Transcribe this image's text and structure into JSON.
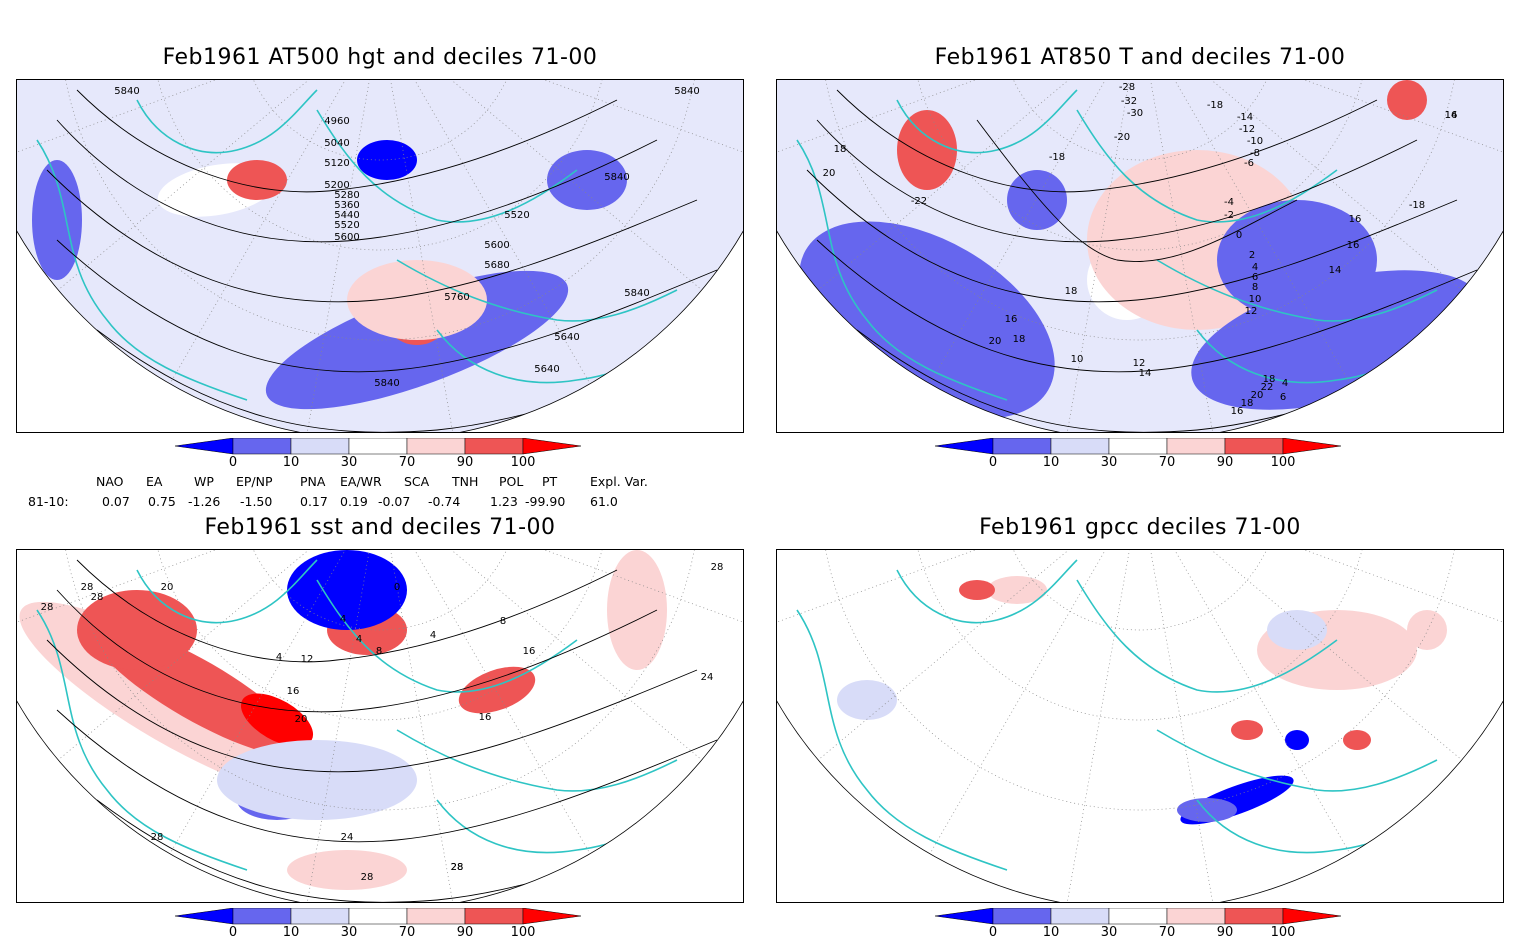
{
  "panels": [
    {
      "id": "p1",
      "title": "Feb1961 AT500 hgt and deciles 71-00",
      "contour_labels": [
        "5840",
        "4960",
        "5040",
        "5120",
        "5200",
        "5280",
        "5360",
        "5440",
        "5520",
        "5600",
        "5520",
        "5600",
        "5680",
        "5760",
        "5840",
        "5840",
        "5640",
        "5640",
        "5840",
        "5840"
      ]
    },
    {
      "id": "p2",
      "title": "Feb1961 AT850 T and deciles 71-00",
      "contour_labels": [
        "-28",
        "-32",
        "-30",
        "-18",
        "-14",
        "-12",
        "-10",
        "-8",
        "-20",
        "-6",
        "-18",
        "-4",
        "-2",
        "0",
        "2",
        "4",
        "6",
        "8",
        "10",
        "12",
        "14",
        "16",
        "18",
        "20",
        "-22",
        "-18",
        "16",
        "16",
        "14",
        "18",
        "16",
        "18",
        "20",
        "10",
        "12",
        "14",
        "4",
        "6",
        "18",
        "22",
        "20",
        "18",
        "16"
      ]
    },
    {
      "id": "p3",
      "title": "Feb1961 sst and deciles 71-00",
      "contour_labels": [
        "28",
        "28",
        "28",
        "20",
        "16",
        "4",
        "12",
        "4",
        "4",
        "8",
        "0",
        "4",
        "8",
        "16",
        "20",
        "24",
        "28",
        "24",
        "28",
        "28",
        "28",
        "28",
        "16"
      ]
    },
    {
      "id": "p4",
      "title": "Feb1961 gpcc deciles 71-00",
      "contour_labels": []
    }
  ],
  "colorbar": {
    "labels": [
      "0",
      "10",
      "30",
      "70",
      "90",
      "100"
    ],
    "colors": [
      "#0000ff",
      "#6666ee",
      "#d8dcf8",
      "#ffffff",
      "#fbd4d4",
      "#ee5555",
      "#ff0000"
    ]
  },
  "indices": {
    "headers": [
      "NAO",
      "EA",
      "WP",
      "EP/NP",
      "PNA",
      "EA/WR",
      "SCA",
      "TNH",
      "POL",
      "PT",
      "Expl. Var."
    ],
    "row_label": "81-10:",
    "values": [
      "0.07",
      "0.75",
      "-1.26",
      "-1.50",
      "0.17",
      "0.19",
      "-0.07",
      "-0.74",
      "1.23",
      "-99.90",
      "61.0"
    ]
  },
  "colors": {
    "coast": "#2ec4c4",
    "contour": "#000000",
    "grid": "#888888"
  }
}
